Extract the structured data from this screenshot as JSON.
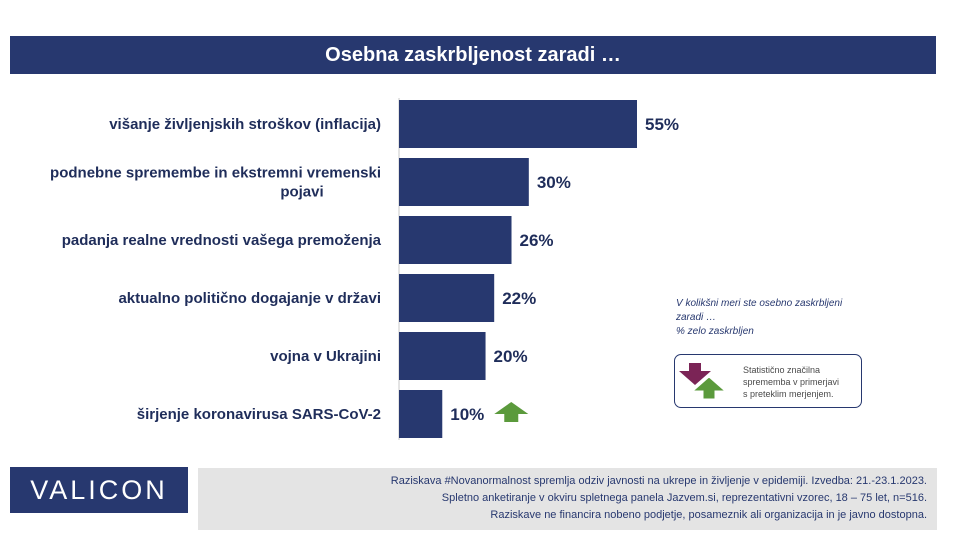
{
  "title": "Osebna zaskrbljenost zaradi …",
  "chart_data": {
    "type": "bar",
    "orientation": "horizontal",
    "categories": [
      "višanje življenjskih stroškov (inflacija)",
      "podnebne spremembe in ekstremni vremenski pojavi",
      "padanja realne vrednosti vašega premoženja",
      "aktualno politično dogajanje v državi",
      "vojna v Ukrajini",
      "širjenje koronavirusa SARS-CoV-2"
    ],
    "category_lines": [
      [
        "višanje življenjskih stroškov (inflacija)"
      ],
      [
        "podnebne spremembe in ekstremni vremenski",
        "pojavi"
      ],
      [
        "padanja realne vrednosti vašega premoženja"
      ],
      [
        "aktualno politično dogajanje v državi"
      ],
      [
        "vojna v Ukrajini"
      ],
      [
        "širjenje koronavirusa SARS-CoV-2"
      ]
    ],
    "values": [
      55,
      30,
      26,
      22,
      20,
      10
    ],
    "value_labels": [
      "55%",
      "30%",
      "26%",
      "22%",
      "20%",
      "10%"
    ],
    "changes": [
      "none",
      "none",
      "none",
      "none",
      "none",
      "up"
    ],
    "xlim": [
      0,
      55
    ],
    "grid": false,
    "bar_color": "#27386f"
  },
  "note": {
    "question": "V kolikšni meri ste osebno zaskrbljeni\nzaradi …",
    "measure": "% zelo zaskrbljen"
  },
  "legend": {
    "text": "Statistično značilna\nsprememba v primerjavi\ns preteklim merjenjem."
  },
  "logo": "VALICON",
  "footer": {
    "line1": "Raziskava #Novanormalnost spremlja odziv javnosti na ukrepe in življenje v epidemiji. Izvedba: 21.-23.1.2023.",
    "line2": "Spletno anketiranje v okviru spletnega panela Jazvem.si, reprezentativni vzorec, 18 – 75 let, n=516.",
    "line3": "Raziskave ne financira nobeno podjetje, posameznik ali organizacija in je javno dostopna."
  },
  "colors": {
    "primary": "#27386f",
    "up_arrow": "#5b9a3c",
    "down_arrow": "#7b2456",
    "footer_bg": "#e4e4e4"
  }
}
